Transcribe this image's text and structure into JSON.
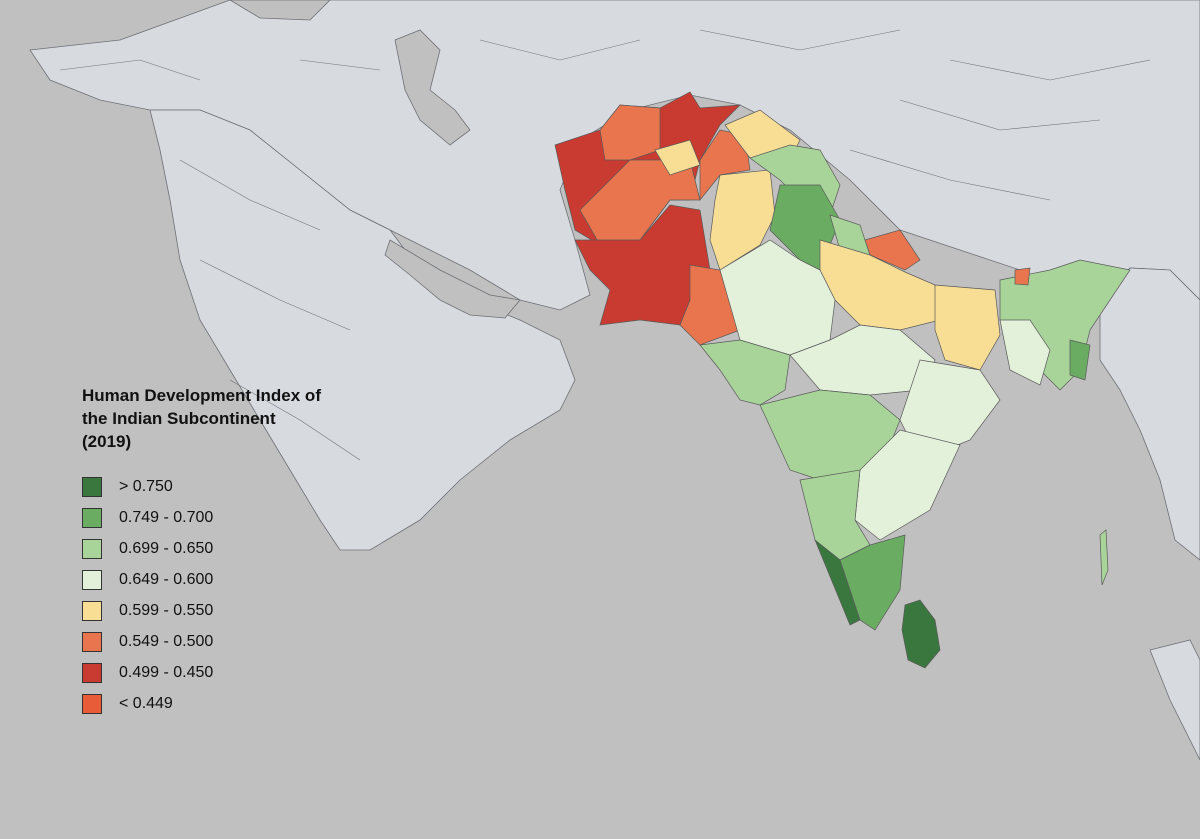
{
  "legend": {
    "title_lines": [
      "Human Development Index of",
      "the Indian Subcontinent",
      "(2019)"
    ],
    "items": [
      {
        "label": "> 0.750",
        "color": "#3a773f"
      },
      {
        "label": "0.749 - 0.700",
        "color": "#6aac62"
      },
      {
        "label": "0.699 - 0.650",
        "color": "#a8d49a"
      },
      {
        "label": "0.649 - 0.600",
        "color": "#e3f1db"
      },
      {
        "label": "0.599 - 0.550",
        "color": "#f8dd95"
      },
      {
        "label": "0.549 - 0.500",
        "color": "#e8754e"
      },
      {
        "label": "0.499 - 0.450",
        "color": "#c93a30"
      },
      {
        "label": "< 0.449",
        "color": "#e85c38"
      }
    ]
  },
  "colors": {
    "sea": "#c0c0c0",
    "other_land": "#d7dbe0",
    "border": "#6d7075"
  }
}
